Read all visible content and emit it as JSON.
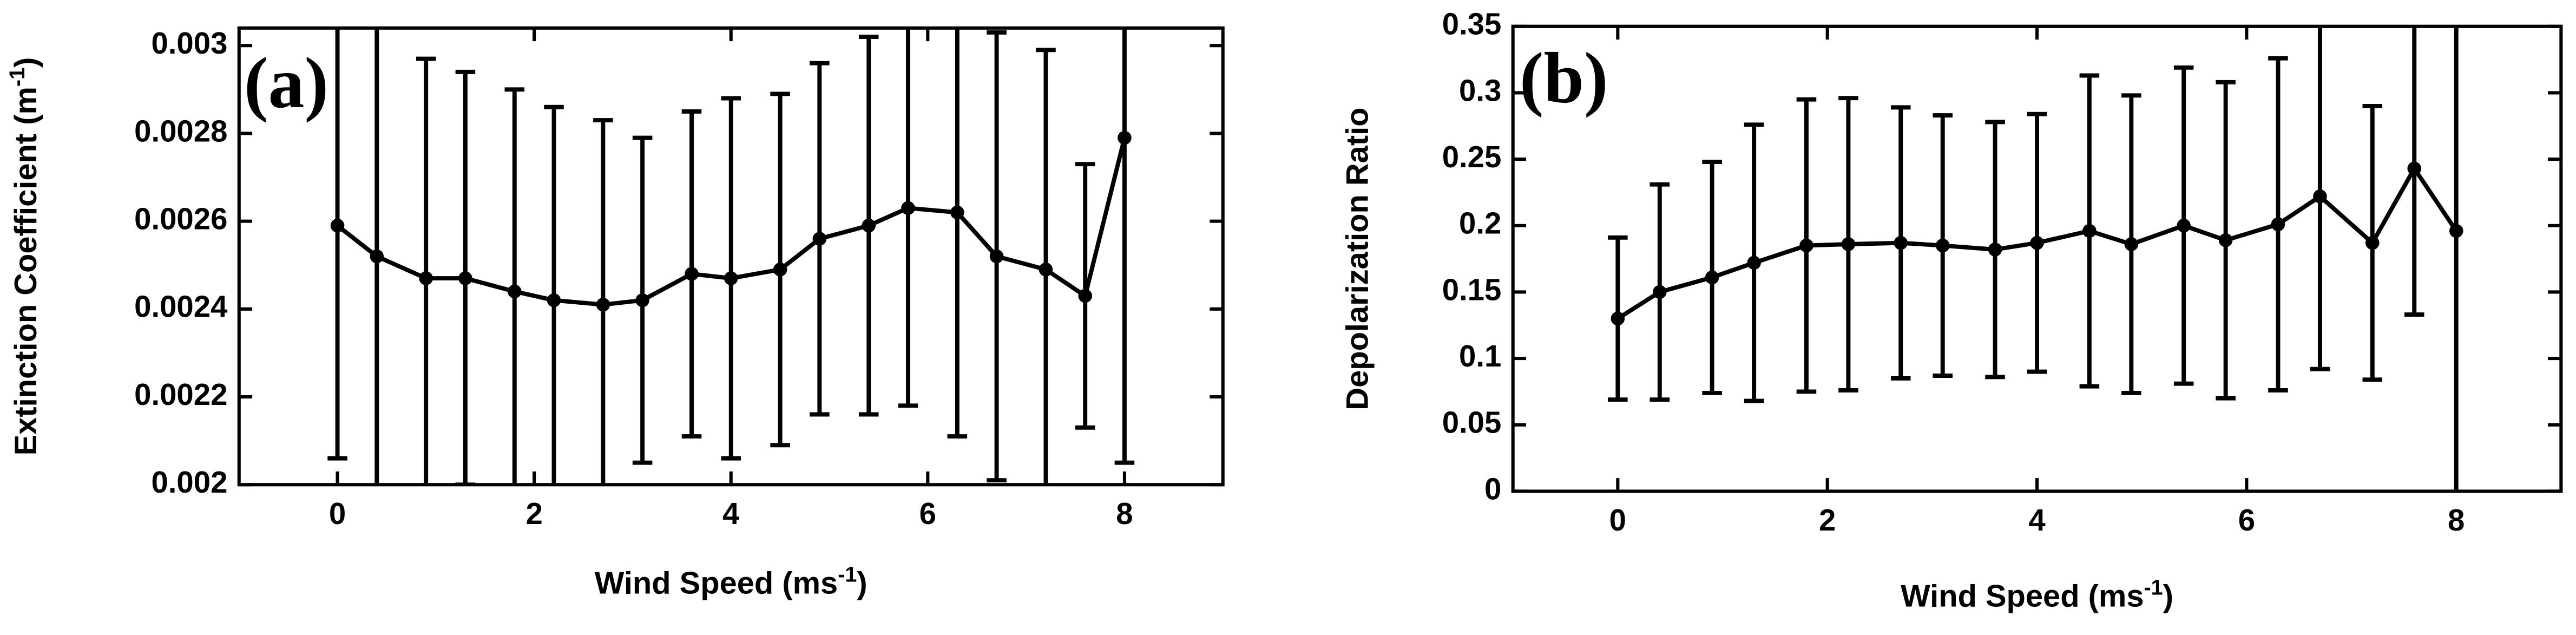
{
  "chart_data": [
    {
      "type": "line",
      "panel_label": "(a)",
      "color": "#000000",
      "x_label": {
        "text": "Wind Speed (ms",
        "superscript": "-1",
        "suffix": ")"
      },
      "y_label": {
        "text": "Extinction Coefficient (m",
        "superscript": "-1",
        "suffix": ")"
      },
      "x": [
        0,
        0.4,
        0.9,
        1.3,
        1.8,
        2.2,
        2.7,
        3.1,
        3.6,
        4.0,
        4.5,
        4.9,
        5.4,
        5.8,
        6.3,
        6.7,
        7.2,
        7.6,
        8.0
      ],
      "values": [
        0.00259,
        0.00252,
        0.00247,
        0.00247,
        0.00244,
        0.00242,
        0.00241,
        0.00242,
        0.00248,
        0.00247,
        0.00249,
        0.00256,
        0.00259,
        0.00263,
        0.00262,
        0.00252,
        0.00249,
        0.00243,
        0.00279
      ],
      "errors": [
        0.00053,
        0.00055,
        0.0005,
        0.00047,
        0.00046,
        0.00044,
        0.00042,
        0.00037,
        0.00037,
        0.00041,
        0.0004,
        0.0004,
        0.00043,
        0.00045,
        0.00051,
        0.00051,
        0.0005,
        0.0003,
        0.00074
      ],
      "xlim": [
        -1,
        9
      ],
      "xticks": [
        0,
        2,
        4,
        6,
        8
      ],
      "ylim": [
        0.002,
        0.00304
      ],
      "yticks": [
        0.002,
        0.0022,
        0.0024,
        0.0026,
        0.0028,
        0.003
      ]
    },
    {
      "type": "line",
      "panel_label": "(b)",
      "color": "#000000",
      "x_label": {
        "text": "Wind Speed (ms",
        "superscript": "-1",
        "suffix": ")"
      },
      "y_label": {
        "text": "Depolarization Ratio"
      },
      "x": [
        0,
        0.4,
        0.9,
        1.3,
        1.8,
        2.2,
        2.7,
        3.1,
        3.6,
        4.0,
        4.5,
        4.9,
        5.4,
        5.8,
        6.3,
        6.7,
        7.2,
        7.6,
        8.0
      ],
      "values": [
        0.13,
        0.15,
        0.161,
        0.172,
        0.185,
        0.186,
        0.187,
        0.185,
        0.182,
        0.187,
        0.196,
        0.186,
        0.2,
        0.189,
        0.201,
        0.222,
        0.187,
        0.243,
        0.196
      ],
      "errors": [
        0.061,
        0.081,
        0.087,
        0.104,
        0.11,
        0.11,
        0.102,
        0.098,
        0.096,
        0.097,
        0.117,
        0.112,
        0.119,
        0.119,
        0.125,
        0.13,
        0.103,
        0.11,
        0.2
      ],
      "xlim": [
        -1,
        9
      ],
      "xticks": [
        0,
        2,
        4,
        6,
        8
      ],
      "ylim": [
        0,
        0.35
      ],
      "yticks": [
        0,
        0.05,
        0.1,
        0.15,
        0.2,
        0.25,
        0.3,
        0.35
      ]
    }
  ]
}
